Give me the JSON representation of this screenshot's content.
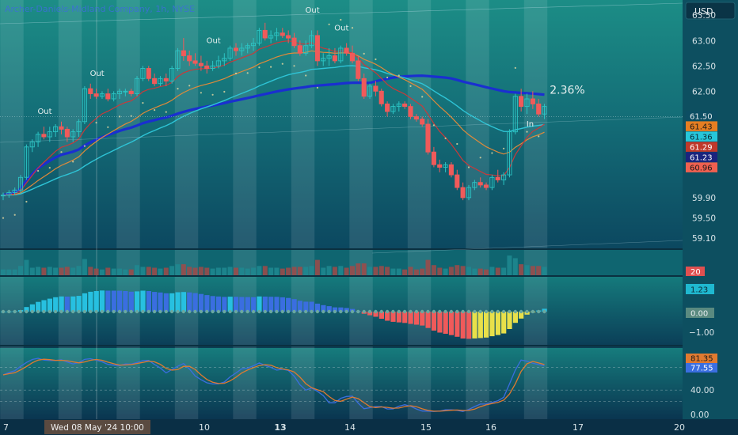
{
  "header": {
    "symbol_title": "Archer-Daniels-Midland Company, 1h, NYSE",
    "currency_button": "USD"
  },
  "chart_data": {
    "type": "candlestick",
    "interval": "1h",
    "x_tick_labels": [
      {
        "label": "7",
        "bold": false
      },
      {
        "label": "10",
        "bold": false
      },
      {
        "label": "13",
        "bold": true
      },
      {
        "label": "14",
        "bold": false
      },
      {
        "label": "15",
        "bold": false
      },
      {
        "label": "16",
        "bold": false
      },
      {
        "label": "17",
        "bold": false
      },
      {
        "label": "20",
        "bold": false
      }
    ],
    "crosshair_time_label": "Wed 08 May '24   10:00",
    "price_axis": {
      "ticks": [
        "63.50",
        "63.00",
        "62.50",
        "62.00",
        "59.90",
        "59.50",
        "59.10"
      ],
      "range": [
        58.9,
        63.8
      ]
    },
    "price_badges": [
      {
        "text": "61.50",
        "bg": "#0d4e63",
        "fg": "#e8eef0"
      },
      {
        "text": "61.43",
        "bg": "#e67e22",
        "fg": "#1a1a1a"
      },
      {
        "text": "61.36",
        "bg": "#26c6da",
        "fg": "#0b2a35"
      },
      {
        "text": "61.29",
        "bg": "#c0392b",
        "fg": "#ffffff"
      },
      {
        "text": "61.23",
        "bg": "#1a237e",
        "fg": "#ffffff"
      },
      {
        "text": "60.96",
        "bg": "#f06050",
        "fg": "#1a1a1a"
      }
    ],
    "candles": [
      [
        59.95,
        60.0,
        59.85,
        59.95
      ],
      [
        59.95,
        60.05,
        59.9,
        60.0
      ],
      [
        60.0,
        60.1,
        59.95,
        60.05
      ],
      [
        60.05,
        60.35,
        60.0,
        60.3
      ],
      [
        60.3,
        60.95,
        60.25,
        60.9
      ],
      [
        60.9,
        61.05,
        60.8,
        61.0
      ],
      [
        61.0,
        61.2,
        60.9,
        61.15
      ],
      [
        61.15,
        61.3,
        61.05,
        61.1
      ],
      [
        61.1,
        61.3,
        61.0,
        61.2
      ],
      [
        61.2,
        61.35,
        61.1,
        61.3
      ],
      [
        61.3,
        61.4,
        61.15,
        61.25
      ],
      [
        61.25,
        61.3,
        61.0,
        61.1
      ],
      [
        61.1,
        61.25,
        61.0,
        61.2
      ],
      [
        61.2,
        61.45,
        61.1,
        61.4
      ],
      [
        61.4,
        62.1,
        61.35,
        62.05
      ],
      [
        62.05,
        62.15,
        61.85,
        61.95
      ],
      [
        61.95,
        62.05,
        61.85,
        61.9
      ],
      [
        61.9,
        62.0,
        61.85,
        61.95
      ],
      [
        61.95,
        62.05,
        61.8,
        61.85
      ],
      [
        61.85,
        62.0,
        61.8,
        61.95
      ],
      [
        61.95,
        62.05,
        61.85,
        62.0
      ],
      [
        62.0,
        62.05,
        61.9,
        62.0
      ],
      [
        62.0,
        62.05,
        61.9,
        61.95
      ],
      [
        61.95,
        62.3,
        61.9,
        62.25
      ],
      [
        62.25,
        62.5,
        62.2,
        62.45
      ],
      [
        62.45,
        62.5,
        62.2,
        62.25
      ],
      [
        62.25,
        62.35,
        62.1,
        62.15
      ],
      [
        62.15,
        62.3,
        62.1,
        62.25
      ],
      [
        62.25,
        62.35,
        62.1,
        62.2
      ],
      [
        62.2,
        62.5,
        62.15,
        62.45
      ],
      [
        62.45,
        62.85,
        62.4,
        62.8
      ],
      [
        62.8,
        63.05,
        62.6,
        62.7
      ],
      [
        62.7,
        62.8,
        62.5,
        62.6
      ],
      [
        62.6,
        62.75,
        62.5,
        62.55
      ],
      [
        62.55,
        62.7,
        62.4,
        62.5
      ],
      [
        62.5,
        62.6,
        62.35,
        62.45
      ],
      [
        62.45,
        62.6,
        62.4,
        62.5
      ],
      [
        62.5,
        62.7,
        62.45,
        62.6
      ],
      [
        62.6,
        62.75,
        62.5,
        62.65
      ],
      [
        62.65,
        62.9,
        62.6,
        62.85
      ],
      [
        62.85,
        62.95,
        62.7,
        62.8
      ],
      [
        62.8,
        62.95,
        62.7,
        62.85
      ],
      [
        62.85,
        62.95,
        62.75,
        62.9
      ],
      [
        62.9,
        63.05,
        62.8,
        62.95
      ],
      [
        62.95,
        63.25,
        62.9,
        63.2
      ],
      [
        63.2,
        63.35,
        63.0,
        63.05
      ],
      [
        63.05,
        63.2,
        62.95,
        63.1
      ],
      [
        63.1,
        63.25,
        63.0,
        63.15
      ],
      [
        63.15,
        63.25,
        63.05,
        63.1
      ],
      [
        63.1,
        63.2,
        62.95,
        63.05
      ],
      [
        63.05,
        63.15,
        62.85,
        62.9
      ],
      [
        62.9,
        63.0,
        62.7,
        62.75
      ],
      [
        62.75,
        63.0,
        62.7,
        62.9
      ],
      [
        62.9,
        63.2,
        62.85,
        63.1
      ],
      [
        63.1,
        63.2,
        62.5,
        62.6
      ],
      [
        62.6,
        62.75,
        62.5,
        62.65
      ],
      [
        62.65,
        62.85,
        62.5,
        62.7
      ],
      [
        62.7,
        62.85,
        62.55,
        62.6
      ],
      [
        62.6,
        62.9,
        62.55,
        62.85
      ],
      [
        62.85,
        62.95,
        62.7,
        62.75
      ],
      [
        62.75,
        62.9,
        62.55,
        62.6
      ],
      [
        62.6,
        62.7,
        62.2,
        62.25
      ],
      [
        62.25,
        62.35,
        61.85,
        61.9
      ],
      [
        61.9,
        62.15,
        61.85,
        62.1
      ],
      [
        62.1,
        62.2,
        61.9,
        62.0
      ],
      [
        62.0,
        62.05,
        61.7,
        61.75
      ],
      [
        61.75,
        61.8,
        61.5,
        61.6
      ],
      [
        61.6,
        61.75,
        61.55,
        61.7
      ],
      [
        61.7,
        61.8,
        61.6,
        61.75
      ],
      [
        61.75,
        61.8,
        61.65,
        61.7
      ],
      [
        61.7,
        61.75,
        61.45,
        61.5
      ],
      [
        61.5,
        61.55,
        61.4,
        61.45
      ],
      [
        61.45,
        61.5,
        61.3,
        61.35
      ],
      [
        61.35,
        61.45,
        60.75,
        60.8
      ],
      [
        60.8,
        60.9,
        60.5,
        60.55
      ],
      [
        60.55,
        60.65,
        60.4,
        60.5
      ],
      [
        60.5,
        60.6,
        60.4,
        60.55
      ],
      [
        60.55,
        60.6,
        60.3,
        60.35
      ],
      [
        60.35,
        60.45,
        60.05,
        60.1
      ],
      [
        60.1,
        60.2,
        59.85,
        59.9
      ],
      [
        59.9,
        60.15,
        59.85,
        60.1
      ],
      [
        60.1,
        60.25,
        60.05,
        60.2
      ],
      [
        60.2,
        60.3,
        60.1,
        60.15
      ],
      [
        60.15,
        60.2,
        60.05,
        60.1
      ],
      [
        60.1,
        60.35,
        60.05,
        60.3
      ],
      [
        60.3,
        60.45,
        60.2,
        60.25
      ],
      [
        60.25,
        60.4,
        60.15,
        60.35
      ],
      [
        60.35,
        61.25,
        60.3,
        61.2
      ],
      [
        61.2,
        61.95,
        61.15,
        61.9
      ],
      [
        61.9,
        62.05,
        61.6,
        61.7
      ],
      [
        61.7,
        61.95,
        61.55,
        61.85
      ],
      [
        61.85,
        62.0,
        61.65,
        61.75
      ],
      [
        61.75,
        61.85,
        61.5,
        61.55
      ],
      [
        61.55,
        61.75,
        61.45,
        61.7
      ]
    ],
    "annotations": [
      {
        "text": "Out",
        "bar": 7,
        "price": 61.55
      },
      {
        "text": "Out",
        "bar": 16,
        "price": 62.3
      },
      {
        "text": "Out",
        "bar": 36,
        "price": 62.95
      },
      {
        "text": "Out",
        "bar": 53,
        "price": 63.55
      },
      {
        "text": "Out",
        "bar": 58,
        "price": 63.2
      },
      {
        "text": "In",
        "bar": 91,
        "price": 61.3
      },
      {
        "text": "2.36%",
        "bar": 95,
        "price": 61.95,
        "big": true
      }
    ],
    "volume_panel": {
      "badge": "20"
    },
    "oscillator_panel": {
      "ticks": [
        "1.23",
        "0.00",
        "−1.00"
      ]
    },
    "stochastic_panel": {
      "ticks": [
        "81.35",
        "77.55",
        "40.00",
        "0.00"
      ]
    }
  }
}
